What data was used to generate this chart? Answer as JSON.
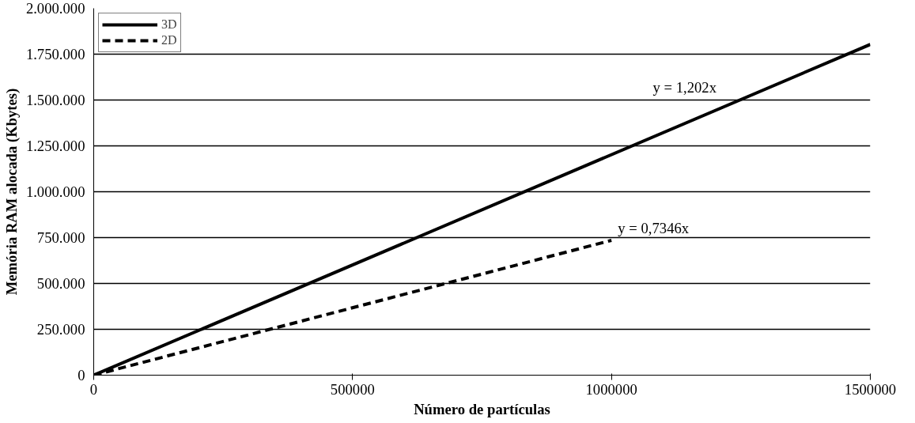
{
  "chart_data": {
    "type": "line",
    "xlabel": "Número de partículas",
    "ylabel": "Memória RAM alocada (Kbytes)",
    "xlim": [
      0,
      1500000
    ],
    "xticks": [
      0,
      500000,
      1000000,
      1500000
    ],
    "ylim": [
      0,
      2000000
    ],
    "yticks": [
      0,
      {
        "value": 250000,
        "label": "250.000"
      },
      {
        "value": 500000,
        "label": "500.000"
      },
      {
        "value": 750000,
        "label": "750.000"
      },
      {
        "value": 1000000,
        "label": "1.000.000"
      },
      {
        "value": 1250000,
        "label": "1.250.000"
      },
      {
        "value": 1500000,
        "label": "1.500.000"
      },
      {
        "value": 1750000,
        "label": "1.750.000"
      },
      {
        "value": 2000000,
        "label": "2.000.000"
      }
    ],
    "grid": "y",
    "legend": "top left",
    "marker": "none",
    "series": [
      {
        "name": "3D",
        "color": "#000000",
        "line_style": "solid",
        "x": [
          0,
          1500000
        ],
        "values": [
          0,
          1803000
        ]
      },
      {
        "name": "2D",
        "color": "#000000",
        "line_style": "dashed",
        "x": [
          0,
          1000000
        ],
        "values": [
          0,
          735000
        ]
      }
    ],
    "annotations": [
      "y = 1,202x",
      "y = 0,7346x"
    ]
  }
}
